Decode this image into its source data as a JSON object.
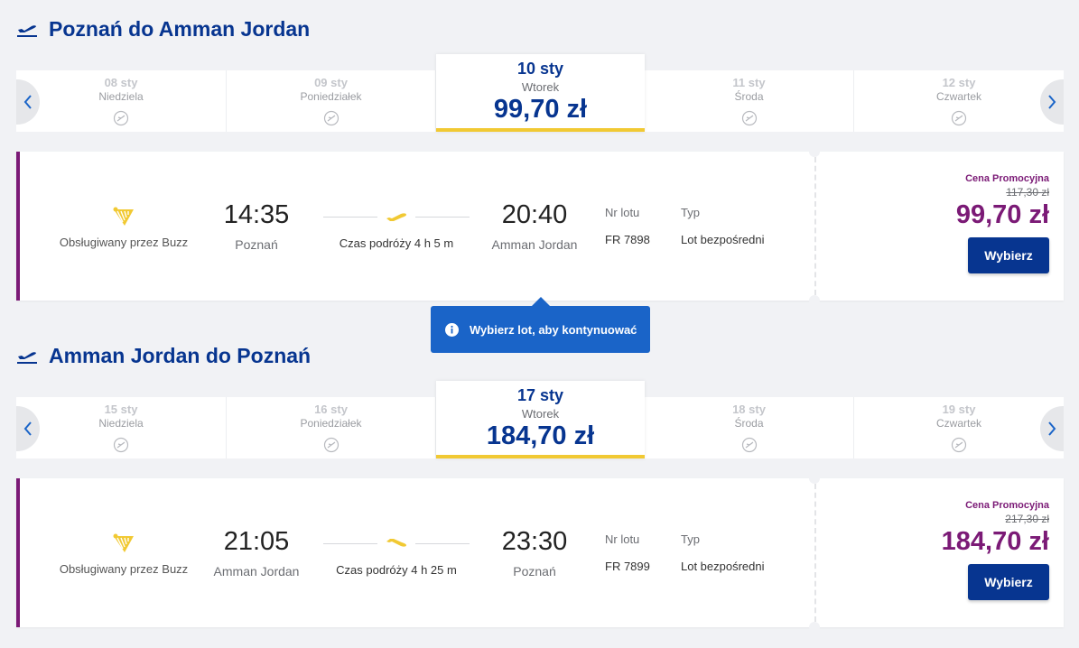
{
  "outbound": {
    "title": "Poznań do Amman Jordan",
    "dates": [
      {
        "date": "08 sty",
        "day": "Niedziela"
      },
      {
        "date": "09 sty",
        "day": "Poniedziałek"
      },
      {
        "date": "11 sty",
        "day": "Środa"
      },
      {
        "date": "12 sty",
        "day": "Czwartek"
      }
    ],
    "selected": {
      "date": "10 sty",
      "day": "Wtorek",
      "price": "99,70 zł"
    },
    "flight": {
      "operator": "Obsługiwany przez Buzz",
      "dep_time": "14:35",
      "dep_city": "Poznań",
      "duration": "Czas podróży 4 h 5 m",
      "arr_time": "20:40",
      "arr_city": "Amman Jordan",
      "flight_no_label": "Nr lotu",
      "flight_no": "FR 7898",
      "type_label": "Typ",
      "type": "Lot bezpośredni",
      "promo_label": "Cena Promocyjna",
      "old_price": "117,30 zł",
      "price": "99,70 zł",
      "select_label": "Wybierz"
    }
  },
  "tooltip": {
    "text": "Wybierz lot, aby kontynuować"
  },
  "return": {
    "title": "Amman Jordan do Poznań",
    "dates": [
      {
        "date": "15 sty",
        "day": "Niedziela"
      },
      {
        "date": "16 sty",
        "day": "Poniedziałek"
      },
      {
        "date": "18 sty",
        "day": "Środa"
      },
      {
        "date": "19 sty",
        "day": "Czwartek"
      }
    ],
    "selected": {
      "date": "17 sty",
      "day": "Wtorek",
      "price": "184,70 zł"
    },
    "flight": {
      "operator": "Obsługiwany przez Buzz",
      "dep_time": "21:05",
      "dep_city": "Amman Jordan",
      "duration": "Czas podróży 4 h 25 m",
      "arr_time": "23:30",
      "arr_city": "Poznań",
      "flight_no_label": "Nr lotu",
      "flight_no": "FR 7899",
      "type_label": "Typ",
      "type": "Lot bezpośredni",
      "promo_label": "Cena Promocyjna",
      "old_price": "217,30 zł",
      "price": "184,70 zł",
      "select_label": "Wybierz"
    }
  },
  "icons": {
    "header": "plane-takeoff-icon",
    "no_flight": "no-flight-icon",
    "operator": "harp-logo-icon",
    "duration": "plane-icon",
    "tooltip": "info-icon",
    "nav_prev": "chevron-left-icon",
    "nav_next": "chevron-right-icon"
  },
  "colors": {
    "brand_blue": "#073590",
    "accent_yellow": "#f1c933",
    "promo_purple": "#7b1a76",
    "tooltip_blue": "#1a64c8"
  }
}
